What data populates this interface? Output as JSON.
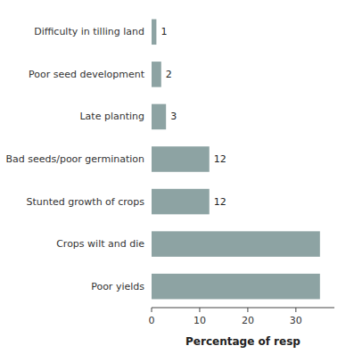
{
  "chart_data": {
    "type": "bar",
    "orientation": "horizontal",
    "categories": [
      "Difficulty in tilling land",
      "Poor seed development",
      "Late planting",
      "Bad seeds/poor germination",
      "Stunted growth of crops",
      "Crops wilt and die",
      "Poor yields"
    ],
    "values": [
      1,
      2,
      3,
      12,
      12,
      35,
      35
    ],
    "value_labels": [
      "1",
      "2",
      "3",
      "12",
      "12",
      null,
      null
    ],
    "data_labels": true,
    "color": "#8da3a3",
    "xlabel": "Percentage of resp",
    "xlim": [
      0,
      38
    ],
    "xticks": [
      0,
      10,
      20,
      30
    ],
    "grid": false
  }
}
